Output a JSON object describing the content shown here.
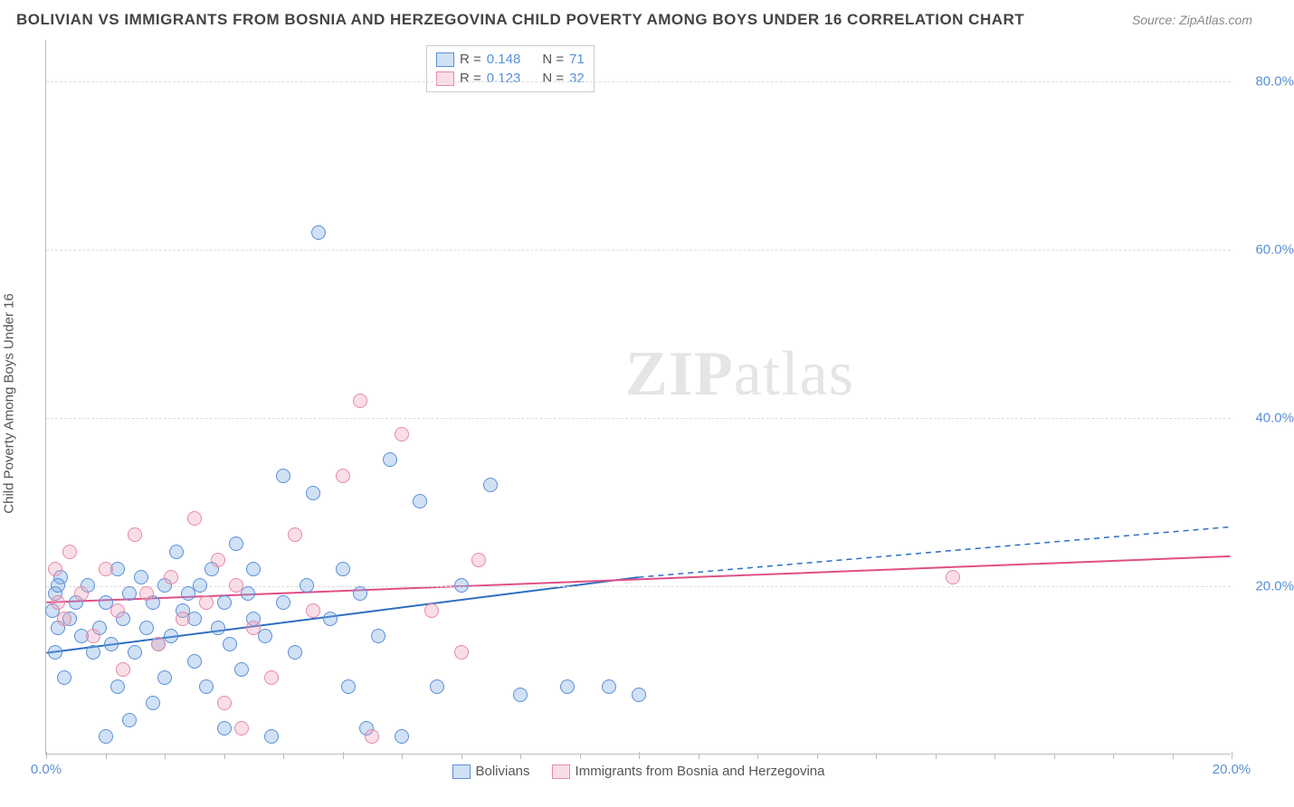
{
  "title": "BOLIVIAN VS IMMIGRANTS FROM BOSNIA AND HERZEGOVINA CHILD POVERTY AMONG BOYS UNDER 16 CORRELATION CHART",
  "source": "Source: ZipAtlas.com",
  "ylabel": "Child Poverty Among Boys Under 16",
  "watermark_a": "ZIP",
  "watermark_b": "atlas",
  "chart": {
    "type": "scatter",
    "xlim": [
      0,
      20
    ],
    "ylim": [
      0,
      85
    ],
    "x_ticks": [
      0,
      5,
      10,
      20
    ],
    "x_tick_labels": [
      "0.0%",
      "",
      "",
      "20.0%"
    ],
    "minor_x_ticks": [
      1,
      2,
      3,
      4,
      6,
      7,
      8,
      9,
      11,
      12,
      13,
      14,
      15,
      16,
      17,
      18,
      19
    ],
    "y_ticks": [
      20,
      40,
      60,
      80
    ],
    "y_tick_labels": [
      "20.0%",
      "40.0%",
      "60.0%",
      "80.0%"
    ],
    "grid_color": "#dddddd",
    "background_color": "#ffffff",
    "marker_radius": 8,
    "marker_border_width": 1.3,
    "series": [
      {
        "name": "Bolivians",
        "fill": "rgba(120,170,225,0.35)",
        "stroke": "#5a8fd6",
        "n": 71,
        "r": "0.148",
        "trend": {
          "x1": 0,
          "y1": 12,
          "x2": 10,
          "y2": 21,
          "x2d": 20,
          "y2d": 27,
          "color": "#2e6fc0",
          "width": 2
        },
        "points": [
          [
            0.1,
            17
          ],
          [
            0.15,
            19
          ],
          [
            0.2,
            15
          ],
          [
            0.25,
            21
          ],
          [
            0.15,
            12
          ],
          [
            0.2,
            20
          ],
          [
            0.3,
            9
          ],
          [
            0.4,
            16
          ],
          [
            0.5,
            18
          ],
          [
            0.6,
            14
          ],
          [
            0.7,
            20
          ],
          [
            0.8,
            12
          ],
          [
            0.9,
            15
          ],
          [
            1.0,
            18
          ],
          [
            1.0,
            2
          ],
          [
            1.1,
            13
          ],
          [
            1.2,
            22
          ],
          [
            1.2,
            8
          ],
          [
            1.3,
            16
          ],
          [
            1.4,
            19
          ],
          [
            1.4,
            4
          ],
          [
            1.5,
            12
          ],
          [
            1.6,
            21
          ],
          [
            1.7,
            15
          ],
          [
            1.8,
            18
          ],
          [
            1.8,
            6
          ],
          [
            1.9,
            13
          ],
          [
            2.0,
            20
          ],
          [
            2.0,
            9
          ],
          [
            2.1,
            14
          ],
          [
            2.2,
            24
          ],
          [
            2.3,
            17
          ],
          [
            2.4,
            19
          ],
          [
            2.5,
            11
          ],
          [
            2.5,
            16
          ],
          [
            2.6,
            20
          ],
          [
            2.7,
            8
          ],
          [
            2.8,
            22
          ],
          [
            2.9,
            15
          ],
          [
            3.0,
            18
          ],
          [
            3.0,
            3
          ],
          [
            3.1,
            13
          ],
          [
            3.2,
            25
          ],
          [
            3.3,
            10
          ],
          [
            3.4,
            19
          ],
          [
            3.5,
            16
          ],
          [
            3.5,
            22
          ],
          [
            3.7,
            14
          ],
          [
            3.8,
            2
          ],
          [
            4.0,
            18
          ],
          [
            4.0,
            33
          ],
          [
            4.2,
            12
          ],
          [
            4.4,
            20
          ],
          [
            4.5,
            31
          ],
          [
            4.6,
            62
          ],
          [
            4.8,
            16
          ],
          [
            5.0,
            22
          ],
          [
            5.1,
            8
          ],
          [
            5.3,
            19
          ],
          [
            5.4,
            3
          ],
          [
            5.6,
            14
          ],
          [
            5.8,
            35
          ],
          [
            6.0,
            2
          ],
          [
            6.3,
            30
          ],
          [
            6.6,
            8
          ],
          [
            7.0,
            20
          ],
          [
            7.5,
            32
          ],
          [
            8.0,
            7
          ],
          [
            8.8,
            8
          ],
          [
            9.5,
            8
          ],
          [
            10.0,
            7
          ]
        ]
      },
      {
        "name": "Immigrants from Bosnia and Herzegovina",
        "fill": "rgba(240,160,185,0.35)",
        "stroke": "#e589a8",
        "n": 32,
        "r": "0.123",
        "trend": {
          "x1": 0,
          "y1": 18,
          "x2": 20,
          "y2": 23.5,
          "color": "#e04e87",
          "width": 2
        },
        "points": [
          [
            0.15,
            22
          ],
          [
            0.2,
            18
          ],
          [
            0.3,
            16
          ],
          [
            0.4,
            24
          ],
          [
            0.6,
            19
          ],
          [
            0.8,
            14
          ],
          [
            1.0,
            22
          ],
          [
            1.2,
            17
          ],
          [
            1.3,
            10
          ],
          [
            1.5,
            26
          ],
          [
            1.7,
            19
          ],
          [
            1.9,
            13
          ],
          [
            2.1,
            21
          ],
          [
            2.3,
            16
          ],
          [
            2.5,
            28
          ],
          [
            2.7,
            18
          ],
          [
            2.9,
            23
          ],
          [
            3.0,
            6
          ],
          [
            3.2,
            20
          ],
          [
            3.3,
            3
          ],
          [
            3.5,
            15
          ],
          [
            3.8,
            9
          ],
          [
            4.2,
            26
          ],
          [
            4.5,
            17
          ],
          [
            5.0,
            33
          ],
          [
            5.3,
            42
          ],
          [
            5.5,
            2
          ],
          [
            6.0,
            38
          ],
          [
            6.5,
            17
          ],
          [
            7.0,
            12
          ],
          [
            7.3,
            23
          ],
          [
            15.3,
            21
          ]
        ]
      }
    ]
  },
  "legend_top": {
    "rows": [
      {
        "swatch_fill": "rgba(120,170,225,0.35)",
        "swatch_stroke": "#5a8fd6",
        "r": "0.148",
        "n": "71"
      },
      {
        "swatch_fill": "rgba(240,160,185,0.35)",
        "swatch_stroke": "#e589a8",
        "r": "0.123",
        "n": "32"
      }
    ]
  },
  "legend_bottom": {
    "items": [
      {
        "swatch_fill": "rgba(120,170,225,0.35)",
        "swatch_stroke": "#5a8fd6",
        "label": "Bolivians"
      },
      {
        "swatch_fill": "rgba(240,160,185,0.35)",
        "swatch_stroke": "#e589a8",
        "label": "Immigrants from Bosnia and Herzegovina"
      }
    ]
  }
}
